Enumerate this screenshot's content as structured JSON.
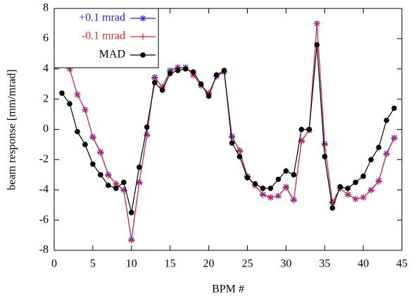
{
  "chart_data": {
    "type": "line",
    "xlabel": "BPM #",
    "ylabel": "beam response [mm/mrad]",
    "x": [
      1,
      2,
      3,
      4,
      5,
      6,
      7,
      8,
      9,
      10,
      11,
      12,
      13,
      14,
      15,
      16,
      17,
      18,
      19,
      20,
      21,
      22,
      23,
      24,
      25,
      26,
      27,
      28,
      29,
      30,
      31,
      32,
      33,
      34,
      35,
      36,
      37,
      38,
      39,
      40,
      41,
      42,
      43,
      44
    ],
    "series": [
      {
        "name": "+0.1 mrad",
        "color": "#2020ff",
        "marker": "star",
        "values": [
          4.45,
          4.0,
          2.3,
          1.3,
          -0.5,
          -1.5,
          -3.0,
          -3.6,
          -4.0,
          -7.3,
          -3.5,
          -0.35,
          3.45,
          2.8,
          3.9,
          4.1,
          4.1,
          3.6,
          2.9,
          2.4,
          3.5,
          3.8,
          -0.45,
          -1.4,
          -3.1,
          -3.7,
          -4.3,
          -4.5,
          -4.4,
          -3.8,
          -4.65,
          -0.75,
          -0.05,
          7.0,
          -0.95,
          -4.8,
          -3.9,
          -4.3,
          -4.6,
          -4.5,
          -4.0,
          -3.4,
          -1.6,
          -0.55
        ]
      },
      {
        "name": "-0.1 mrad",
        "color": "#ff2020",
        "marker": "plus",
        "values": [
          4.4,
          4.0,
          2.3,
          1.3,
          -0.55,
          -1.55,
          -3.05,
          -3.6,
          -4.05,
          -7.35,
          -3.55,
          -0.4,
          3.4,
          2.8,
          3.85,
          4.05,
          4.1,
          3.6,
          2.9,
          2.35,
          3.5,
          3.8,
          -0.5,
          -1.45,
          -3.15,
          -3.7,
          -4.35,
          -4.5,
          -4.4,
          -3.85,
          -4.7,
          -0.8,
          -0.05,
          7.0,
          -1.0,
          -4.85,
          -3.9,
          -4.3,
          -4.6,
          -4.5,
          -4.05,
          -3.45,
          -1.65,
          -0.6
        ]
      },
      {
        "name": "MAD",
        "color": "#000000",
        "marker": "circle",
        "values": [
          2.4,
          1.7,
          -0.15,
          -1.0,
          -2.3,
          -3.0,
          -3.7,
          -3.9,
          -3.5,
          -5.5,
          -2.5,
          0.15,
          3.1,
          2.6,
          3.7,
          3.9,
          4.0,
          3.8,
          3.0,
          2.2,
          3.6,
          3.9,
          -0.9,
          -1.8,
          -3.2,
          -3.6,
          -3.9,
          -3.9,
          -3.3,
          -2.75,
          -3.0,
          0.0,
          0.0,
          5.6,
          -1.8,
          -5.2,
          -3.8,
          -3.9,
          -3.5,
          -3.1,
          -2.0,
          -1.2,
          0.6,
          1.4
        ]
      }
    ],
    "xlim": [
      0,
      45
    ],
    "xticks": [
      0,
      5,
      10,
      15,
      20,
      25,
      30,
      35,
      40,
      45
    ],
    "ylim": [
      -8,
      8
    ],
    "yticks": [
      -8,
      -6,
      -4,
      -2,
      0,
      2,
      4,
      6,
      8
    ],
    "grid": false,
    "legend": "upper left"
  }
}
